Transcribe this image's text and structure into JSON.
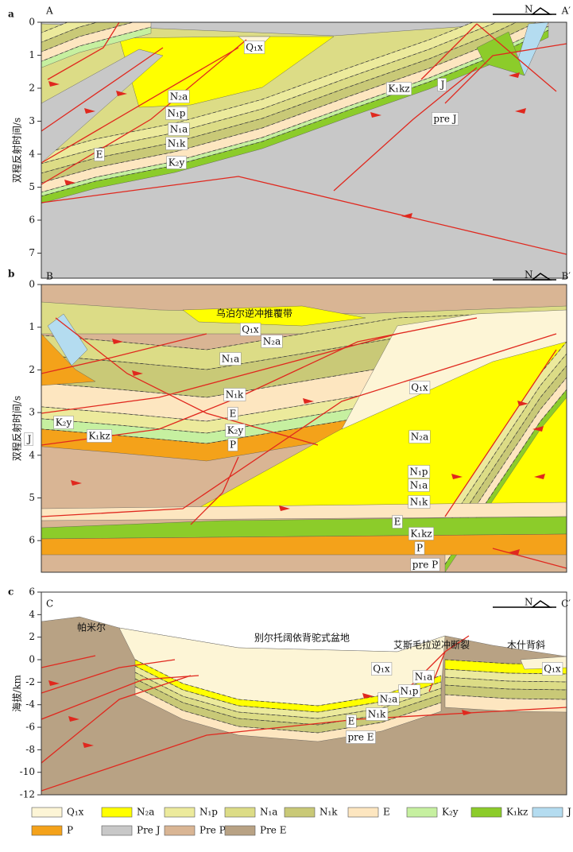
{
  "panels": [
    {
      "letter": "a",
      "start": "A",
      "end": "A′",
      "north": "N",
      "axis_label": "双程反射时间/s",
      "ticks": [
        0,
        1,
        2,
        3,
        4,
        5,
        6,
        7
      ],
      "units": [
        "Q₁x",
        "N₂a",
        "N₁p",
        "N₁a",
        "N₁k",
        "E",
        "K₂y",
        "K₁kz",
        "J",
        "pre J"
      ]
    },
    {
      "letter": "b",
      "start": "B",
      "end": "B′",
      "north": "N",
      "axis_label": "双程反射时间/s",
      "ticks": [
        0,
        1,
        2,
        3,
        4,
        5,
        6
      ],
      "title": "乌泊尔逆冲推覆带",
      "units": [
        "Q₁x",
        "N₂a",
        "N₁a",
        "N₁k",
        "E",
        "K₂y",
        "P",
        "K₂y",
        "J",
        "K₁kz",
        "Q₁x",
        "N₂a",
        "N₁p",
        "N₁a",
        "N₁k",
        "E",
        "K₁kz",
        "P",
        "pre P"
      ]
    },
    {
      "letter": "c",
      "start": "C",
      "end": "C′",
      "north": "N",
      "axis_label": "海拔/km",
      "ticks": [
        6,
        4,
        2,
        0,
        -2,
        -4,
        -6,
        -8,
        -10,
        -12
      ],
      "places": [
        "帕米尔",
        "别尔托阔依背驼式盆地",
        "艾斯毛拉逆冲断裂",
        "木什背斜"
      ],
      "units": [
        "Q₁x",
        "N₁a",
        "N₁p",
        "N₂a",
        "N₁k",
        "E",
        "pre E",
        "Q₁x"
      ]
    }
  ],
  "legend": [
    {
      "label": "Q₁x",
      "color": "#fdf5d6"
    },
    {
      "label": "N₂a",
      "color": "#ffff00"
    },
    {
      "label": "N₁p",
      "color": "#ecea9c"
    },
    {
      "label": "N₁a",
      "color": "#dcdc86"
    },
    {
      "label": "N₁k",
      "color": "#c9c977"
    },
    {
      "label": "E",
      "color": "#fde6c0"
    },
    {
      "label": "K₂y",
      "color": "#c6f0a0"
    },
    {
      "label": "K₁kz",
      "color": "#8ccc2a"
    },
    {
      "label": "J",
      "color": "#b4dcf0"
    },
    {
      "label": "P",
      "color": "#f4a21a"
    },
    {
      "label": "Pre J",
      "color": "#c8c8c8"
    },
    {
      "label": "Pre P",
      "color": "#d9b594"
    },
    {
      "label": "Pre E",
      "color": "#b8a284"
    }
  ]
}
